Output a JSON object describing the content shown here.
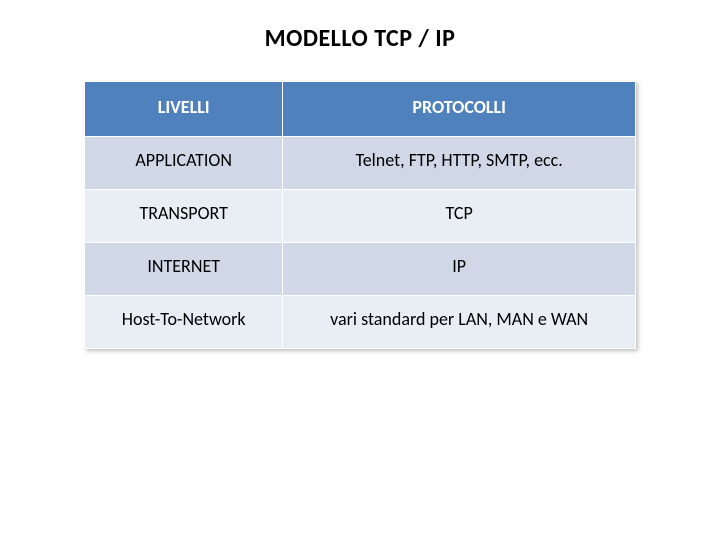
{
  "title": "MODELLO  TCP / IP",
  "table": {
    "type": "table",
    "header_bg": "#4f81bd",
    "header_color": "#ffffff",
    "row_odd_bg": "#d0d8e8",
    "row_even_bg": "#e9edf4",
    "border_color": "#ffffff",
    "title_fontsize": 24,
    "cell_fontsize": 18,
    "columns": [
      "LIVELLI",
      "PROTOCOLLI"
    ],
    "column_widths": [
      "36%",
      "64%"
    ],
    "rows": [
      [
        "APPLICATION",
        "Telnet, FTP, HTTP, SMTP, ecc."
      ],
      [
        "TRANSPORT",
        "TCP"
      ],
      [
        "INTERNET",
        "IP"
      ],
      [
        "Host-To-Network",
        "vari standard per LAN, MAN e WAN"
      ]
    ]
  }
}
